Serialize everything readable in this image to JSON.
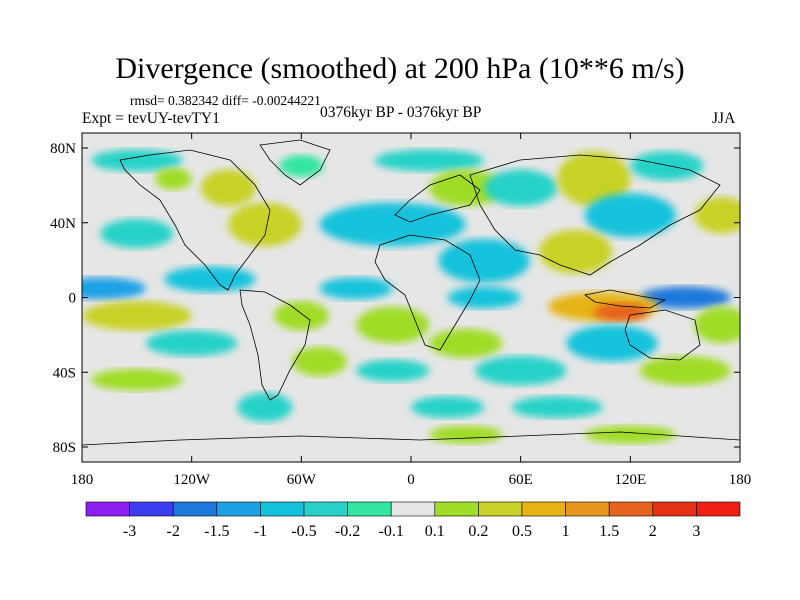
{
  "chart_data": {
    "type": "heatmap",
    "title": "Divergence (smoothed) at 200 hPa (10**6 m/s)",
    "stats": "rmsd= 0.382342 diff= -0.00244221",
    "experiment": "Expt = tevUY-tevTY1",
    "period": "0376kyr BP - 0376kyr BP",
    "season": "JJA",
    "x_ticks": [
      "180",
      "120W",
      "60W",
      "0",
      "60E",
      "120E",
      "180"
    ],
    "y_ticks": [
      "80N",
      "40N",
      "0",
      "40S",
      "80S"
    ],
    "xlim": [
      -180,
      180
    ],
    "ylim": [
      -90,
      90
    ],
    "colorbar_labels": [
      "-3",
      "-2",
      "-1.5",
      "-1",
      "-0.5",
      "-0.2",
      "-0.1",
      "0.1",
      "0.2",
      "0.5",
      "1",
      "1.5",
      "2",
      "3"
    ],
    "colorbar_colors": [
      "#8c1ef0",
      "#3c3cf0",
      "#1e78dc",
      "#1ea0e6",
      "#14c2dc",
      "#28d2c8",
      "#32e6a0",
      "#e6e6e6",
      "#a0dc28",
      "#c8d228",
      "#e6b414",
      "#e6961e",
      "#e6641e",
      "#e63214",
      "#f01e14"
    ],
    "features": [
      {
        "lon": 10,
        "lat": 75,
        "rx": 30,
        "ry": 6,
        "level": -2
      },
      {
        "lon": -150,
        "lat": 75,
        "rx": 25,
        "ry": 6,
        "level": -2
      },
      {
        "lon": -100,
        "lat": 60,
        "rx": 15,
        "ry": 10,
        "level": 2
      },
      {
        "lon": -130,
        "lat": 65,
        "rx": 10,
        "ry": 6,
        "level": 1
      },
      {
        "lon": -60,
        "lat": 72,
        "rx": 12,
        "ry": 6,
        "level": -1
      },
      {
        "lon": 30,
        "lat": 60,
        "rx": 20,
        "ry": 10,
        "level": 1
      },
      {
        "lon": 60,
        "lat": 60,
        "rx": 20,
        "ry": 10,
        "level": -2
      },
      {
        "lon": 100,
        "lat": 65,
        "rx": 20,
        "ry": 15,
        "level": 2
      },
      {
        "lon": 140,
        "lat": 72,
        "rx": 20,
        "ry": 8,
        "level": -2
      },
      {
        "lon": -10,
        "lat": 40,
        "rx": 40,
        "ry": 12,
        "level": -3
      },
      {
        "lon": 120,
        "lat": 45,
        "rx": 25,
        "ry": 12,
        "level": -3
      },
      {
        "lon": 170,
        "lat": 45,
        "rx": 15,
        "ry": 10,
        "level": 2
      },
      {
        "lon": -150,
        "lat": 35,
        "rx": 20,
        "ry": 8,
        "level": -2
      },
      {
        "lon": -80,
        "lat": 40,
        "rx": 20,
        "ry": 12,
        "level": 2
      },
      {
        "lon": 40,
        "lat": 20,
        "rx": 25,
        "ry": 12,
        "level": -3
      },
      {
        "lon": 90,
        "lat": 25,
        "rx": 20,
        "ry": 12,
        "level": 2
      },
      {
        "lon": -170,
        "lat": 5,
        "rx": 25,
        "ry": 6,
        "level": -4
      },
      {
        "lon": -110,
        "lat": 10,
        "rx": 25,
        "ry": 7,
        "level": -3
      },
      {
        "lon": -30,
        "lat": 5,
        "rx": 20,
        "ry": 6,
        "level": -3
      },
      {
        "lon": 40,
        "lat": 0,
        "rx": 20,
        "ry": 6,
        "level": -3
      },
      {
        "lon": 150,
        "lat": 0,
        "rx": 25,
        "ry": 6,
        "level": -5
      },
      {
        "lon": 105,
        "lat": -5,
        "rx": 30,
        "ry": 8,
        "level": 3
      },
      {
        "lon": 115,
        "lat": -8,
        "rx": 15,
        "ry": 5,
        "level": 5
      },
      {
        "lon": -150,
        "lat": -10,
        "rx": 30,
        "ry": 8,
        "level": 2
      },
      {
        "lon": -60,
        "lat": -10,
        "rx": 15,
        "ry": 8,
        "level": 1
      },
      {
        "lon": -10,
        "lat": -15,
        "rx": 20,
        "ry": 10,
        "level": 1
      },
      {
        "lon": -120,
        "lat": -25,
        "rx": 25,
        "ry": 7,
        "level": -2
      },
      {
        "lon": 30,
        "lat": -25,
        "rx": 20,
        "ry": 8,
        "level": 1
      },
      {
        "lon": 110,
        "lat": -25,
        "rx": 25,
        "ry": 10,
        "level": -3
      },
      {
        "lon": 170,
        "lat": -15,
        "rx": 15,
        "ry": 10,
        "level": 1
      },
      {
        "lon": -50,
        "lat": -35,
        "rx": 15,
        "ry": 8,
        "level": 1
      },
      {
        "lon": -10,
        "lat": -40,
        "rx": 20,
        "ry": 6,
        "level": -2
      },
      {
        "lon": 60,
        "lat": -40,
        "rx": 25,
        "ry": 8,
        "level": -2
      },
      {
        "lon": 150,
        "lat": -40,
        "rx": 25,
        "ry": 8,
        "level": 1
      },
      {
        "lon": -150,
        "lat": -45,
        "rx": 25,
        "ry": 6,
        "level": 1
      },
      {
        "lon": -80,
        "lat": -60,
        "rx": 15,
        "ry": 8,
        "level": -2
      },
      {
        "lon": 20,
        "lat": -60,
        "rx": 20,
        "ry": 6,
        "level": -2
      },
      {
        "lon": 80,
        "lat": -60,
        "rx": 25,
        "ry": 6,
        "level": -2
      },
      {
        "lon": 120,
        "lat": -75,
        "rx": 25,
        "ry": 5,
        "level": 1
      },
      {
        "lon": 30,
        "lat": -75,
        "rx": 20,
        "ry": 5,
        "level": 1
      }
    ]
  }
}
